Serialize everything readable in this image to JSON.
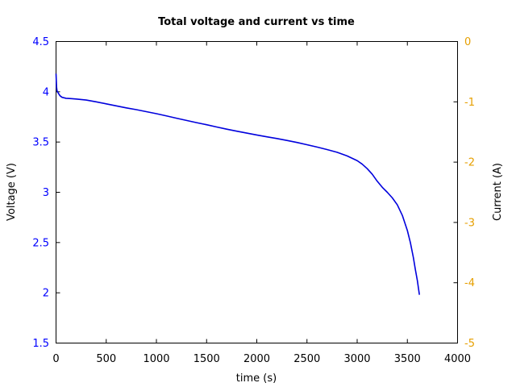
{
  "chart_data": {
    "type": "line",
    "title": "Total voltage and current vs time",
    "xlabel": "time (s)",
    "ylabel": "Voltage (V)",
    "y2label": "Current (A)",
    "xlim": [
      0,
      4000
    ],
    "ylim": [
      1.5,
      4.5
    ],
    "y2lim": [
      -5,
      0
    ],
    "xticks": [
      0,
      500,
      1000,
      1500,
      2000,
      2500,
      3000,
      3500,
      4000
    ],
    "yticks": [
      1.5,
      2,
      2.5,
      3,
      3.5,
      4,
      4.5
    ],
    "y2ticks": [
      -5,
      -4,
      -3,
      -2,
      -1,
      0
    ],
    "xtick_labels": [
      "0",
      "500",
      "1000",
      "1500",
      "2000",
      "2500",
      "3000",
      "3500",
      "4000"
    ],
    "ytick_labels": [
      "1.5",
      "2",
      "2.5",
      "3",
      "3.5",
      "4",
      "4.5"
    ],
    "y2tick_labels": [
      "-5",
      "-4",
      "-3",
      "-2",
      "-1",
      "0"
    ],
    "grid": false,
    "colors": {
      "voltage_axis": "#0000ff",
      "current_axis": "#e69f00",
      "voltage_line": "#0000dd"
    },
    "series": [
      {
        "axis": "left",
        "x": [
          0,
          5,
          10,
          20,
          40,
          60,
          100,
          150,
          200,
          300,
          400,
          500,
          600,
          700,
          800,
          900,
          1000,
          1100,
          1200,
          1300,
          1400,
          1500,
          1600,
          1700,
          1800,
          1900,
          2000,
          2100,
          2200,
          2300,
          2400,
          2500,
          2600,
          2700,
          2800,
          2900,
          3000,
          3050,
          3100,
          3150,
          3200,
          3250,
          3300,
          3350,
          3400,
          3450,
          3500,
          3530,
          3560,
          3580,
          3600,
          3610,
          3620
        ],
        "y": [
          4.18,
          4.05,
          4.01,
          3.99,
          3.96,
          3.945,
          3.935,
          3.932,
          3.928,
          3.918,
          3.9,
          3.88,
          3.86,
          3.84,
          3.822,
          3.802,
          3.782,
          3.76,
          3.737,
          3.715,
          3.693,
          3.672,
          3.65,
          3.628,
          3.608,
          3.589,
          3.57,
          3.552,
          3.535,
          3.516,
          3.496,
          3.473,
          3.45,
          3.425,
          3.398,
          3.362,
          3.315,
          3.28,
          3.235,
          3.18,
          3.11,
          3.05,
          3.0,
          2.945,
          2.875,
          2.77,
          2.62,
          2.5,
          2.35,
          2.23,
          2.12,
          2.05,
          1.98
        ]
      }
    ]
  }
}
